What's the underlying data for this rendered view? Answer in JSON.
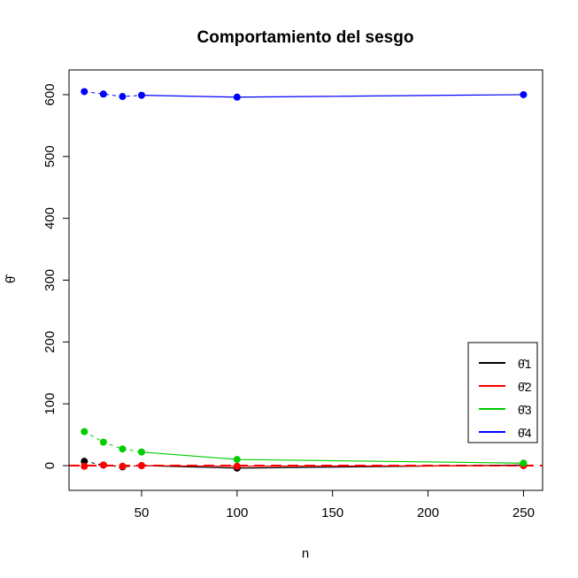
{
  "chart_data": {
    "type": "line",
    "title": "Comportamiento del sesgo",
    "xlabel": "n",
    "ylabel": "θ̂",
    "xlim": [
      12,
      260
    ],
    "ylim": [
      -40,
      640
    ],
    "x_ticks": [
      50,
      100,
      150,
      200,
      250
    ],
    "y_ticks": [
      0,
      100,
      200,
      300,
      400,
      500,
      600
    ],
    "x": [
      20,
      30,
      40,
      50,
      100,
      250
    ],
    "series": [
      {
        "name": "θ̂1",
        "color": "#000000",
        "values": [
          7,
          1,
          -2,
          0,
          -4,
          1
        ]
      },
      {
        "name": "θ̂2",
        "color": "#ff0000",
        "values": [
          -1,
          1,
          -1,
          0,
          -1,
          0
        ]
      },
      {
        "name": "θ̂3",
        "color": "#00cd00",
        "values": [
          55,
          38,
          27,
          22,
          10,
          4
        ]
      },
      {
        "name": "θ̂4",
        "color": "#0000ff",
        "values": [
          605,
          601,
          597,
          599,
          596,
          600
        ]
      }
    ],
    "reference_line": {
      "y": 0,
      "color": "#ff0000",
      "style": "dashed"
    },
    "legend_position": "bottom-right"
  }
}
